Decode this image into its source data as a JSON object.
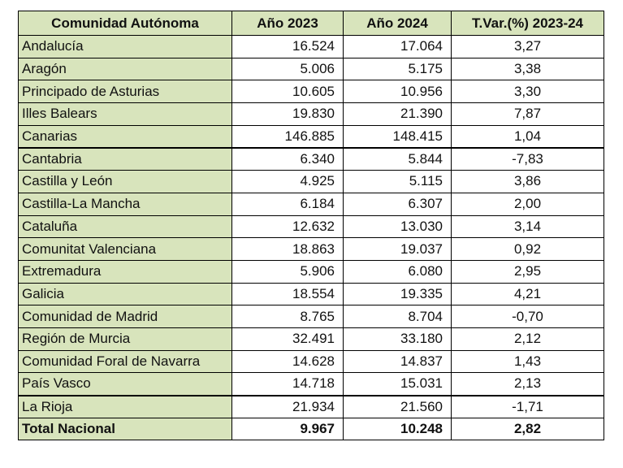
{
  "headers": [
    "Comunidad Autónoma",
    "Año 2023",
    "Año 2024",
    "T.Var.(%) 2023-24"
  ],
  "rows": [
    [
      "Andalucía",
      "16.524",
      "17.064",
      "3,27"
    ],
    [
      "Aragón",
      "5.006",
      "5.175",
      "3,38"
    ],
    [
      "Principado de Asturias",
      "10.605",
      "10.956",
      "3,30"
    ],
    [
      "Illes Balears",
      "19.830",
      "21.390",
      "7,87"
    ],
    [
      "Canarias",
      "146.885",
      "148.415",
      "1,04"
    ],
    [
      "Cantabria",
      "6.340",
      "5.844",
      "-7,83"
    ],
    [
      "Castilla y León",
      "4.925",
      "5.115",
      "3,86"
    ],
    [
      "Castilla-La Mancha",
      "6.184",
      "6.307",
      "2,00"
    ],
    [
      "Cataluña",
      "12.632",
      "13.030",
      "3,14"
    ],
    [
      "Comunitat Valenciana",
      "18.863",
      "19.037",
      "0,92"
    ],
    [
      "Extremadura",
      "5.906",
      "6.080",
      "2,95"
    ],
    [
      "Galicia",
      "18.554",
      "19.335",
      "4,21"
    ],
    [
      "Comunidad de Madrid",
      "8.765",
      "8.704",
      "-0,70"
    ],
    [
      "Región de Murcia",
      "32.491",
      "33.180",
      "2,12"
    ],
    [
      "Comunidad Foral de Navarra",
      "14.628",
      "14.837",
      "1,43"
    ],
    [
      "País Vasco",
      "14.718",
      "15.031",
      "2,13"
    ],
    [
      "La Rioja",
      "21.934",
      "21.560",
      "-1,71"
    ]
  ],
  "total": [
    "Total Nacional",
    "9.967",
    "10.248",
    "2,82"
  ]
}
